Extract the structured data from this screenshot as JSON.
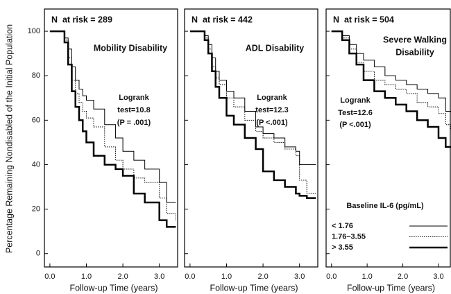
{
  "chart_data": [
    {
      "type": "line",
      "step": "post",
      "title": "N  at risk = 289",
      "subtitle": [
        "Mobility Disability"
      ],
      "annotation": [
        "Logrank",
        "test=10.8",
        "(P = .001)"
      ],
      "ylabel": "Percentage Remaining Nondisabled of the Initial Population",
      "xlabel": "Follow-up Time (years)",
      "xlim": [
        -0.15,
        3.5
      ],
      "ylim": [
        -6,
        110
      ],
      "xticks": [
        {
          "value": 0,
          "label": "0.0"
        },
        {
          "value": 1,
          "label": "1.0"
        },
        {
          "value": 2,
          "label": "2.0"
        },
        {
          "value": 3,
          "label": "3.0"
        }
      ],
      "yticks": [
        0,
        20,
        40,
        60,
        80,
        100
      ],
      "show_ytick_labels": true,
      "series": [
        {
          "color": "#000",
          "dash": "solid",
          "width": 1,
          "x": [
            0,
            0.4,
            0.5,
            0.6,
            0.7,
            0.8,
            0.9,
            1.0,
            1.2,
            1.5,
            1.8,
            2.0,
            2.3,
            2.6,
            3.0,
            3.2,
            3.45
          ],
          "values": [
            100,
            97,
            92,
            84,
            78,
            74,
            71,
            69,
            65,
            58,
            52,
            46,
            42,
            38,
            32,
            23,
            23
          ]
        },
        {
          "color": "#000",
          "dash": "dotted",
          "width": 1,
          "x": [
            0,
            0.4,
            0.5,
            0.6,
            0.7,
            0.8,
            0.9,
            1.0,
            1.2,
            1.5,
            1.8,
            2.0,
            2.3,
            2.6,
            3.0,
            3.2,
            3.45
          ],
          "values": [
            100,
            96,
            88,
            78,
            72,
            68,
            64,
            61,
            57,
            48,
            42,
            38,
            34,
            32,
            25,
            18,
            15
          ]
        },
        {
          "color": "#000",
          "dash": "solid",
          "width": 2.5,
          "x": [
            0,
            0.4,
            0.5,
            0.6,
            0.7,
            0.8,
            0.9,
            1.0,
            1.2,
            1.5,
            1.8,
            2.0,
            2.3,
            2.6,
            3.0,
            3.2,
            3.45
          ],
          "values": [
            100,
            95,
            85,
            73,
            66,
            60,
            55,
            50,
            44,
            40,
            38,
            35,
            27,
            23,
            15,
            12,
            12
          ]
        }
      ]
    },
    {
      "type": "line",
      "step": "post",
      "title": "N  at risk = 442",
      "subtitle": [
        "ADL Disability"
      ],
      "annotation": [
        "Logrank",
        "test=12.3",
        "(P <.001)"
      ],
      "xlabel": "Follow-up Time (years)",
      "xlim": [
        -0.15,
        3.5
      ],
      "ylim": [
        -6,
        110
      ],
      "xticks": [
        {
          "value": 0,
          "label": "0.0"
        },
        {
          "value": 1,
          "label": "1.0"
        },
        {
          "value": 2,
          "label": "2.0"
        },
        {
          "value": 3,
          "label": "3.0"
        }
      ],
      "yticks": [
        0,
        20,
        40,
        60,
        80,
        100
      ],
      "show_ytick_labels": false,
      "series": [
        {
          "color": "#000",
          "dash": "solid",
          "width": 1,
          "x": [
            0,
            0.4,
            0.5,
            0.6,
            0.7,
            0.8,
            1.0,
            1.2,
            1.5,
            1.8,
            2.0,
            2.3,
            2.6,
            2.9,
            3.0,
            3.2,
            3.45
          ],
          "values": [
            100,
            98,
            94,
            88,
            82,
            78,
            73,
            70,
            64,
            57,
            54,
            52,
            48,
            46,
            40,
            40,
            40
          ]
        },
        {
          "color": "#000",
          "dash": "dotted",
          "width": 1,
          "x": [
            0,
            0.4,
            0.5,
            0.6,
            0.7,
            0.8,
            1.0,
            1.2,
            1.5,
            1.8,
            2.0,
            2.3,
            2.6,
            2.9,
            3.0,
            3.2,
            3.45
          ],
          "values": [
            100,
            97,
            92,
            84,
            79,
            76,
            70,
            66,
            60,
            55,
            52,
            50,
            47,
            44,
            33,
            27,
            27
          ]
        },
        {
          "color": "#000",
          "dash": "solid",
          "width": 2.5,
          "x": [
            0,
            0.4,
            0.5,
            0.6,
            0.7,
            0.8,
            1.0,
            1.2,
            1.5,
            1.8,
            2.0,
            2.3,
            2.6,
            2.9,
            3.0,
            3.2,
            3.45
          ],
          "values": [
            100,
            96,
            90,
            82,
            75,
            70,
            62,
            58,
            52,
            47,
            37,
            33,
            30,
            27,
            26,
            25,
            25
          ]
        }
      ]
    },
    {
      "type": "line",
      "step": "post",
      "title": "N  at risk = 504",
      "subtitle": [
        "Severe Walking",
        "Disability"
      ],
      "annotation": [
        "Logrank",
        "Test=12.6",
        "(P <.001)"
      ],
      "xlabel": "Follow-up Time (years)",
      "legend_title": "Baseline IL-6 (pg/mL)",
      "xlim": [
        -0.15,
        3.35
      ],
      "ylim": [
        -6,
        110
      ],
      "xticks": [
        {
          "value": 0,
          "label": "0.0"
        },
        {
          "value": 1,
          "label": "1.0"
        },
        {
          "value": 2,
          "label": "2.0"
        },
        {
          "value": 3,
          "label": "3.0"
        }
      ],
      "yticks": [
        0,
        20,
        40,
        60,
        80,
        100
      ],
      "show_ytick_labels": false,
      "series": [
        {
          "name": "< 1.76",
          "color": "#000",
          "dash": "solid",
          "width": 1,
          "x": [
            0,
            0.3,
            0.5,
            0.7,
            0.9,
            1.2,
            1.5,
            1.8,
            2.1,
            2.4,
            2.7,
            3.0,
            3.2,
            3.35
          ],
          "values": [
            100,
            98,
            94,
            90,
            87,
            84,
            80,
            78,
            76,
            74,
            72,
            70,
            64,
            64
          ]
        },
        {
          "name": "1.76–3.55",
          "color": "#000",
          "dash": "dotted",
          "width": 1,
          "x": [
            0,
            0.3,
            0.5,
            0.7,
            0.9,
            1.2,
            1.5,
            1.8,
            2.1,
            2.4,
            2.7,
            3.0,
            3.2,
            3.35
          ],
          "values": [
            100,
            97,
            92,
            86,
            82,
            78,
            76,
            74,
            72,
            68,
            66,
            63,
            58,
            56
          ]
        },
        {
          "name": "> 3.55",
          "color": "#000",
          "dash": "solid",
          "width": 2.5,
          "x": [
            0,
            0.3,
            0.5,
            0.7,
            0.9,
            1.2,
            1.5,
            1.8,
            2.1,
            2.4,
            2.7,
            3.0,
            3.2,
            3.35
          ],
          "values": [
            100,
            96,
            90,
            85,
            78,
            73,
            70,
            67,
            64,
            60,
            57,
            52,
            48,
            48
          ]
        }
      ]
    }
  ]
}
